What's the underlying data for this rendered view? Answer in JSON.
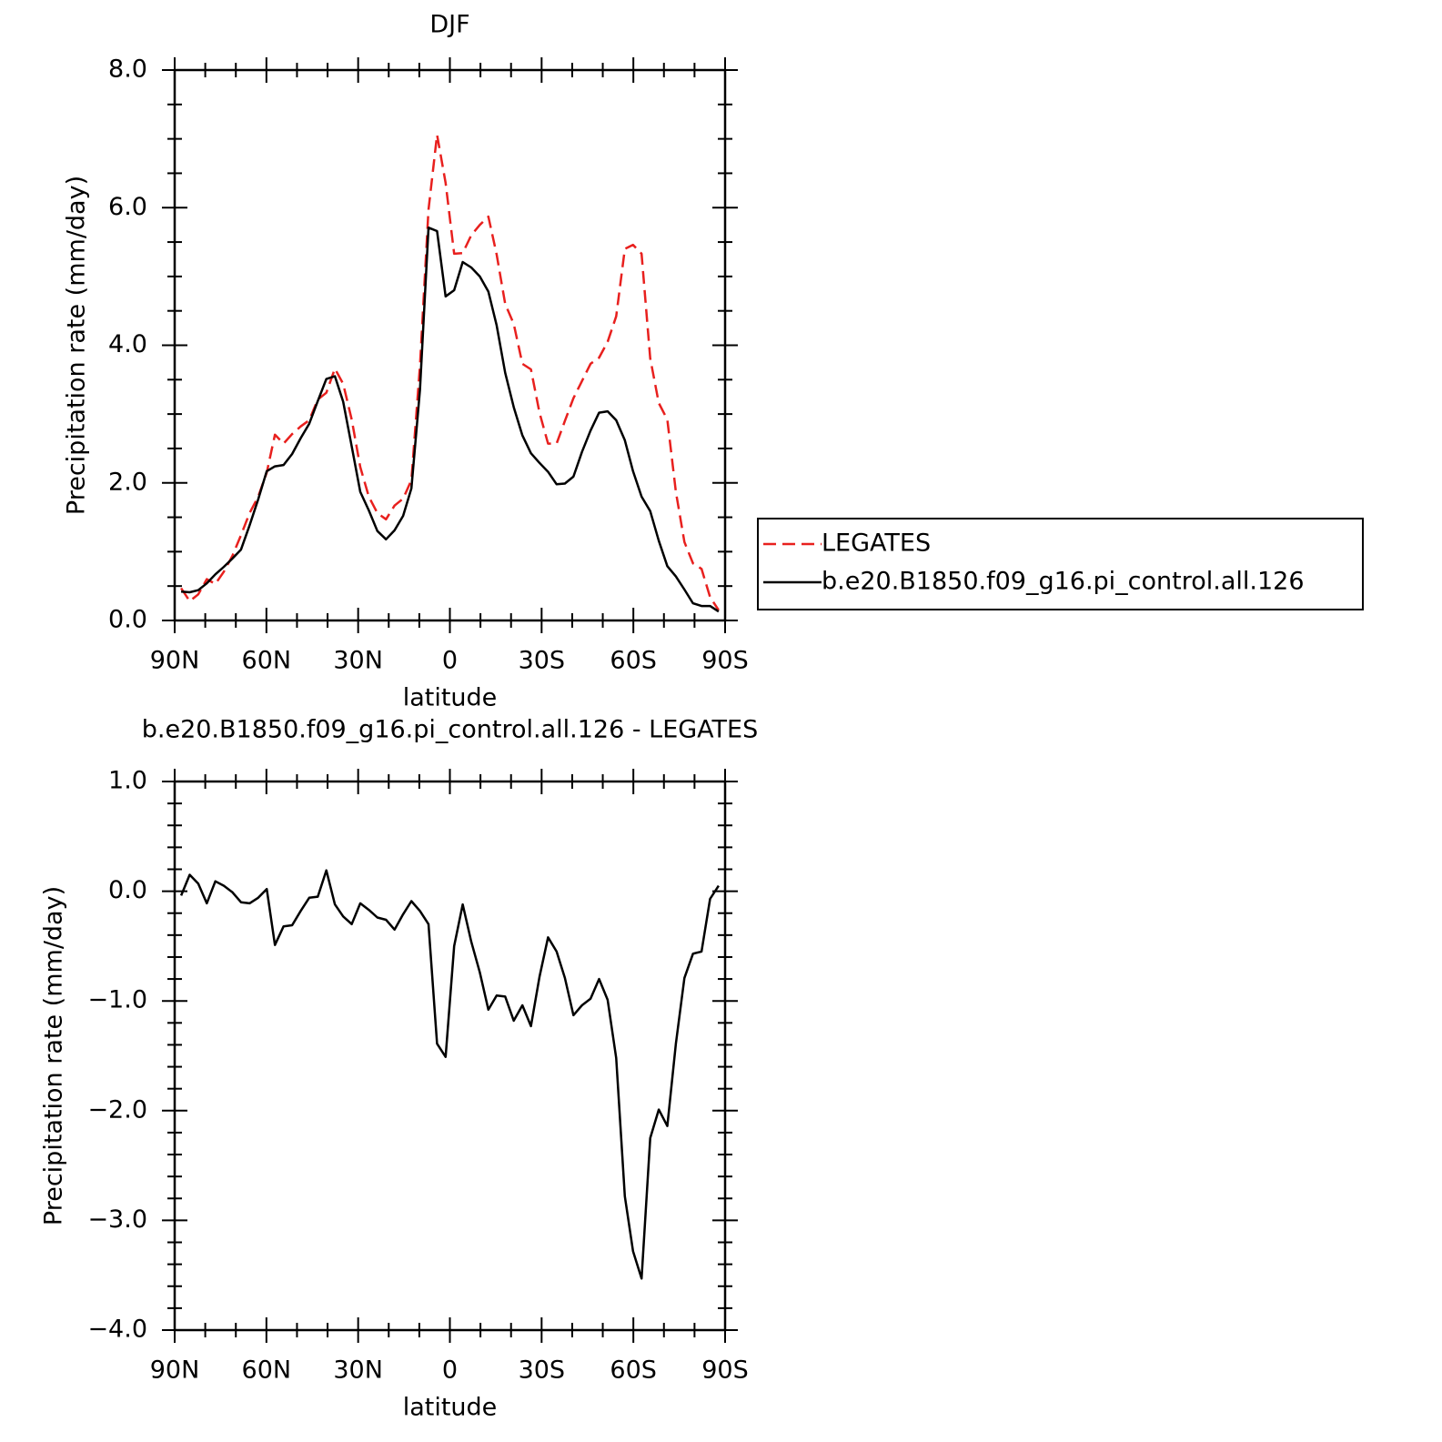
{
  "chart_data": [
    {
      "type": "line",
      "title": "DJF",
      "xlabel": "latitude",
      "ylabel": "Precipitation rate (mm/day)",
      "xlim": [
        90,
        -90
      ],
      "xticks": [
        {
          "value": 90,
          "label": "90N"
        },
        {
          "value": 60,
          "label": "60N"
        },
        {
          "value": 30,
          "label": "30N"
        },
        0,
        {
          "value": -30,
          "label": "30S"
        },
        {
          "value": -60,
          "label": "60S"
        },
        {
          "value": -90,
          "label": "90S"
        }
      ],
      "xminor": 3,
      "ylim": [
        0,
        8
      ],
      "yticks": [
        {
          "value": 0,
          "label": "0.0"
        },
        {
          "value": 2,
          "label": "2.0"
        },
        {
          "value": 4,
          "label": "4.0"
        },
        {
          "value": 6,
          "label": "6.0"
        },
        {
          "value": 8,
          "label": "8.0"
        }
      ],
      "yminor": 4,
      "legend": "right",
      "x": [
        87.9,
        85.1,
        82.3,
        79.5,
        76.7,
        73.9,
        71.1,
        68.3,
        65.5,
        62.7,
        59.9,
        57.2,
        54.4,
        51.6,
        48.8,
        46.0,
        43.2,
        40.4,
        37.6,
        34.9,
        32.1,
        29.3,
        26.5,
        23.7,
        20.9,
        18.1,
        15.3,
        12.6,
        9.8,
        7.0,
        4.2,
        1.4,
        -1.4,
        -4.2,
        -7.0,
        -9.8,
        -12.6,
        -15.3,
        -18.1,
        -20.9,
        -23.7,
        -26.5,
        -29.3,
        -32.1,
        -34.9,
        -37.6,
        -40.4,
        -43.2,
        -46.0,
        -48.8,
        -51.6,
        -54.4,
        -57.2,
        -59.9,
        -62.7,
        -65.5,
        -68.3,
        -71.1,
        -73.9,
        -76.7,
        -79.5,
        -82.3,
        -85.1,
        -87.9
      ],
      "series": [
        {
          "name": "LEGATES",
          "color": "#e8201e",
          "dashed": true,
          "values": [
            0.47,
            0.28,
            0.38,
            0.6,
            0.53,
            0.71,
            0.94,
            1.24,
            1.56,
            1.8,
            2.15,
            2.7,
            2.57,
            2.71,
            2.82,
            2.91,
            3.21,
            3.31,
            3.66,
            3.44,
            2.92,
            2.23,
            1.8,
            1.56,
            1.47,
            1.67,
            1.77,
            2.04,
            3.7,
            5.97,
            7.06,
            6.36,
            5.33,
            5.34,
            5.6,
            5.75,
            5.87,
            5.32,
            4.6,
            4.31,
            3.73,
            3.65,
            3.02,
            2.57,
            2.57,
            2.9,
            3.23,
            3.48,
            3.73,
            3.82,
            4.05,
            4.42,
            5.4,
            5.46,
            5.33,
            3.81,
            3.16,
            2.92,
            1.87,
            1.14,
            0.83,
            0.75,
            0.34,
            0.15
          ]
        },
        {
          "name": "b.e20.B1850.f09_g16.pi_control.all.126",
          "color": "#000000",
          "dashed": false,
          "values": [
            0.42,
            0.41,
            0.44,
            0.54,
            0.67,
            0.78,
            0.9,
            1.03,
            1.38,
            1.76,
            2.17,
            2.24,
            2.26,
            2.42,
            2.65,
            2.86,
            3.19,
            3.51,
            3.55,
            3.18,
            2.53,
            1.87,
            1.6,
            1.3,
            1.18,
            1.31,
            1.52,
            1.92,
            3.35,
            5.71,
            5.66,
            4.71,
            4.8,
            5.21,
            5.13,
            5.0,
            4.78,
            4.29,
            3.6,
            3.1,
            2.69,
            2.43,
            2.29,
            2.16,
            1.98,
            1.99,
            2.09,
            2.45,
            2.76,
            3.02,
            3.04,
            2.91,
            2.62,
            2.17,
            1.8,
            1.59,
            1.16,
            0.79,
            0.64,
            0.45,
            0.25,
            0.21,
            0.21,
            0.13
          ]
        }
      ]
    },
    {
      "type": "line",
      "title": "b.e20.B1850.f09_g16.pi_control.all.126 - LEGATES",
      "xlabel": "latitude",
      "ylabel": "Precipitation rate (mm/day)",
      "xlim": [
        90,
        -90
      ],
      "xticks": [
        {
          "value": 90,
          "label": "90N"
        },
        {
          "value": 60,
          "label": "60N"
        },
        {
          "value": 30,
          "label": "30N"
        },
        0,
        {
          "value": -30,
          "label": "30S"
        },
        {
          "value": -60,
          "label": "60S"
        },
        {
          "value": -90,
          "label": "90S"
        }
      ],
      "xminor": 3,
      "ylim": [
        -4,
        1
      ],
      "yticks": [
        {
          "value": -4,
          "label": "−4.0"
        },
        {
          "value": -3,
          "label": "−3.0"
        },
        {
          "value": -2,
          "label": "−2.0"
        },
        {
          "value": -1,
          "label": "−1.0"
        },
        {
          "value": 0,
          "label": "0.0"
        },
        {
          "value": 1,
          "label": "1.0"
        }
      ],
      "yminor": 5,
      "x": [
        87.9,
        85.1,
        82.3,
        79.5,
        76.7,
        73.9,
        71.1,
        68.3,
        65.5,
        62.7,
        59.9,
        57.2,
        54.4,
        51.6,
        48.8,
        46.0,
        43.2,
        40.4,
        37.6,
        34.9,
        32.1,
        29.3,
        26.5,
        23.7,
        20.9,
        18.1,
        15.3,
        12.6,
        9.8,
        7.0,
        4.2,
        1.4,
        -1.4,
        -4.2,
        -7.0,
        -9.8,
        -12.6,
        -15.3,
        -18.1,
        -20.9,
        -23.7,
        -26.5,
        -29.3,
        -32.1,
        -34.9,
        -37.6,
        -40.4,
        -43.2,
        -46.0,
        -48.8,
        -51.6,
        -54.4,
        -57.2,
        -59.9,
        -62.7,
        -65.5,
        -68.3,
        -71.1,
        -73.9,
        -76.7,
        -79.5,
        -82.3,
        -85.1,
        -87.9
      ],
      "series": [
        {
          "color": "#000000",
          "dashed": false,
          "values": [
            -0.04,
            0.15,
            0.07,
            -0.11,
            0.09,
            0.05,
            -0.01,
            -0.1,
            -0.11,
            -0.06,
            0.02,
            -0.49,
            -0.32,
            -0.31,
            -0.18,
            -0.06,
            -0.05,
            0.19,
            -0.12,
            -0.23,
            -0.3,
            -0.11,
            -0.17,
            -0.24,
            -0.26,
            -0.35,
            -0.21,
            -0.09,
            -0.18,
            -0.3,
            -1.39,
            -1.51,
            -0.5,
            -0.12,
            -0.46,
            -0.74,
            -1.08,
            -0.95,
            -0.96,
            -1.18,
            -1.04,
            -1.23,
            -0.78,
            -0.42,
            -0.55,
            -0.79,
            -1.13,
            -1.04,
            -0.98,
            -0.8,
            -0.99,
            -1.52,
            -2.78,
            -3.28,
            -3.53,
            -2.25,
            -1.99,
            -2.14,
            -1.39,
            -0.79,
            -0.57,
            -0.55,
            -0.07,
            0.05
          ]
        }
      ]
    }
  ]
}
